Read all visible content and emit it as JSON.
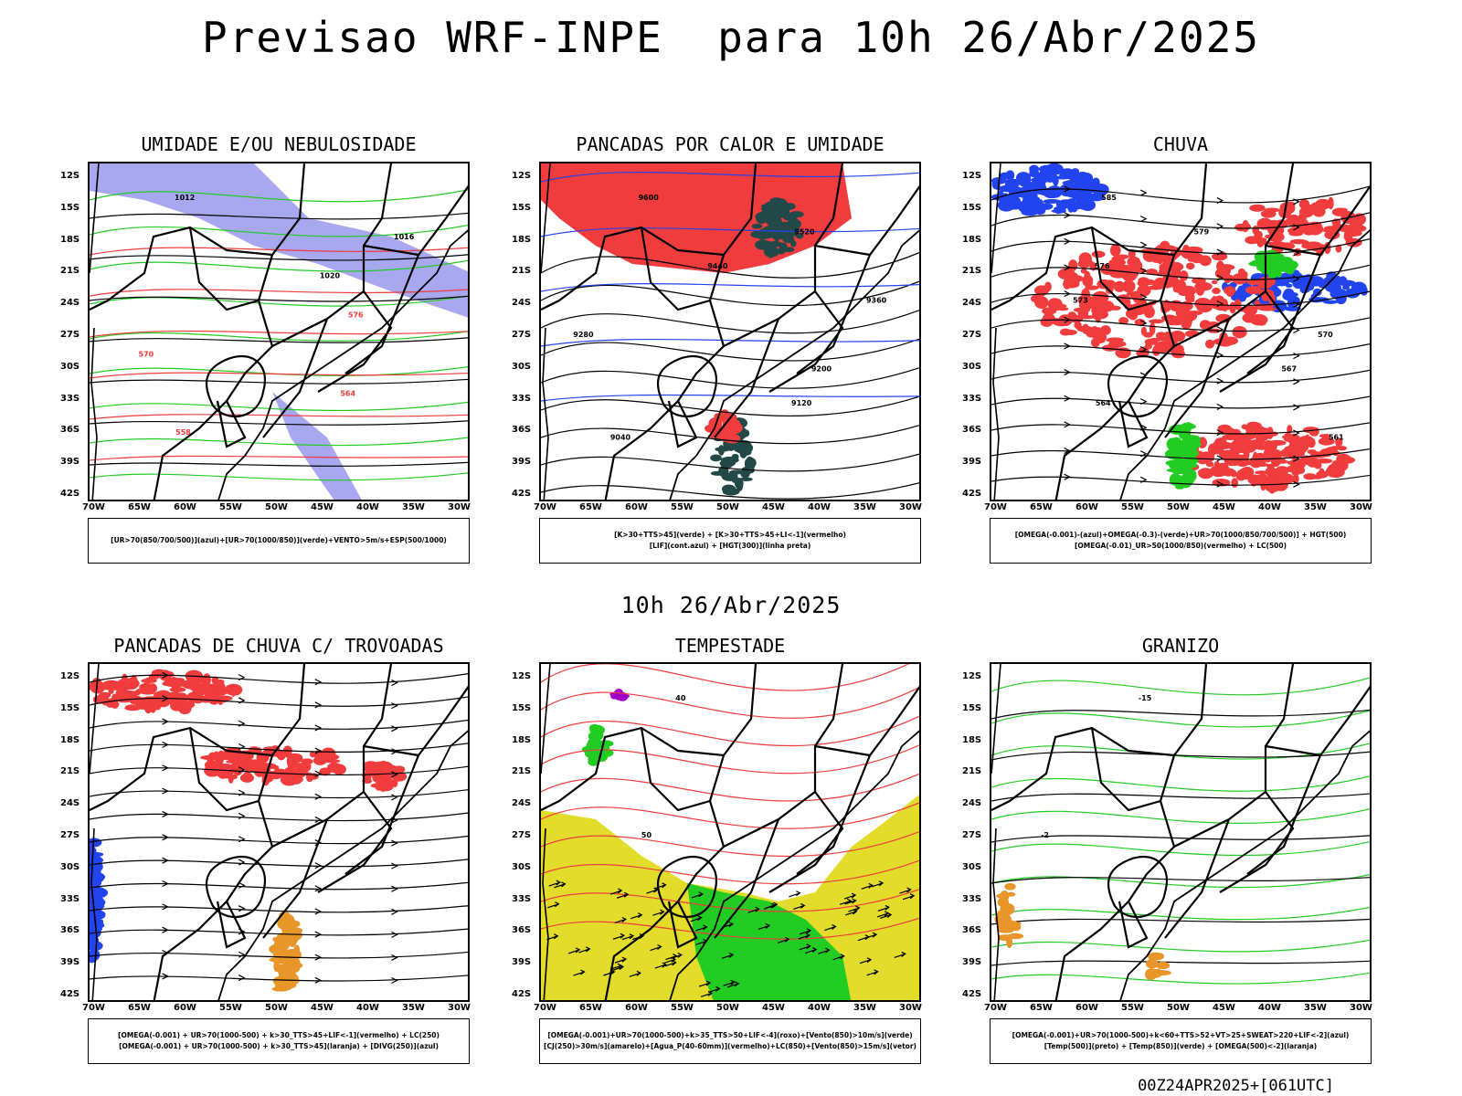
{
  "title": "Previsao WRF-INPE  para 10h 26/Abr/2025",
  "middle_title": "10h 26/Abr/2025",
  "footer": "00Z24APR2025+[061UTC]",
  "axes": {
    "lat_labels": [
      "12S",
      "15S",
      "18S",
      "21S",
      "24S",
      "27S",
      "30S",
      "33S",
      "36S",
      "39S",
      "42S"
    ],
    "lon_labels": [
      "70W",
      "65W",
      "60W",
      "55W",
      "50W",
      "45W",
      "40W",
      "35W",
      "30W"
    ]
  },
  "panels": [
    {
      "title": "UMIDADE E/OU NEBULOSIDADE",
      "legend": [
        "[UR>70(850/700/500)](azul)+[UR>70(1000/850)](verde)+VENTO>5m/s+ESP(500/1000)"
      ],
      "labels": [
        "1012",
        "1016",
        "1020",
        "576",
        "570",
        "564",
        "558"
      ]
    },
    {
      "title": "PANCADAS POR CALOR E UMIDADE",
      "legend": [
        "[K>30+TTS>45](verde) + [K>30+TTS>45+LI<-1](vermelho)",
        "[LIF](cont.azul) + [HGT(300)](linha preta)"
      ],
      "labels": [
        "9600",
        "9520",
        "9440",
        "9360",
        "9280",
        "9200",
        "9120",
        "9040"
      ]
    },
    {
      "title": "CHUVA",
      "legend": [
        "[OMEGA(-0.001)-(azul)+OMEGA(-0.3)-(verde)+UR>70(1000/850/700/500)] + HGT(500)",
        "[OMEGA(-0.01)_UR>50(1000/850)(vermelho) + LC(500)"
      ],
      "labels": [
        "585",
        "579",
        "576",
        "573",
        "570",
        "567",
        "564",
        "561"
      ]
    },
    {
      "title": "PANCADAS DE CHUVA C/ TROVOADAS",
      "legend": [
        "[OMEGA(-0.001) + UR>70(1000-500) + k>30_TTS>45+LIF<-1](vermelho) + LC(250)",
        "[OMEGA(-0.001) + UR>70(1000-500) + k>30_TTS>45](laranja) + [DIVG(250)](azul)"
      ],
      "labels": []
    },
    {
      "title": "TEMPESTADE",
      "legend": [
        "[OMEGA(-0.001)+UR>70(1000-500)+k>35_TTS>50+LIF<-4](roxo)+[Vento(850)>10m/s](verde)",
        "[CJ(250)>30m/s](amarelo)+[Agua_P(40-60mm)](vermelho)+LC(850)+[Vento(850)>15m/s](vetor)"
      ],
      "labels": [
        "40",
        "50"
      ]
    },
    {
      "title": "GRANIZO",
      "legend": [
        "[OMEGA(-0.001)+UR>70(1000-500)+k<60+TTS>52+VT>25+SWEAT>220+LIF<-2](azul)",
        "[Temp(500)](preto) + [Temp(850)](verde) + [OMEGA(500)<-2](laranja)"
      ],
      "labels": [
        "-15",
        "-2"
      ]
    }
  ],
  "colors": {
    "red": "#f03c3c",
    "green": "#22cc22",
    "blue": "#2244ee",
    "lavender": "#a8a8f0",
    "dark_teal": "#224848",
    "yellow": "#e3dc2a",
    "orange": "#e8962a",
    "purple": "#a000c8"
  }
}
